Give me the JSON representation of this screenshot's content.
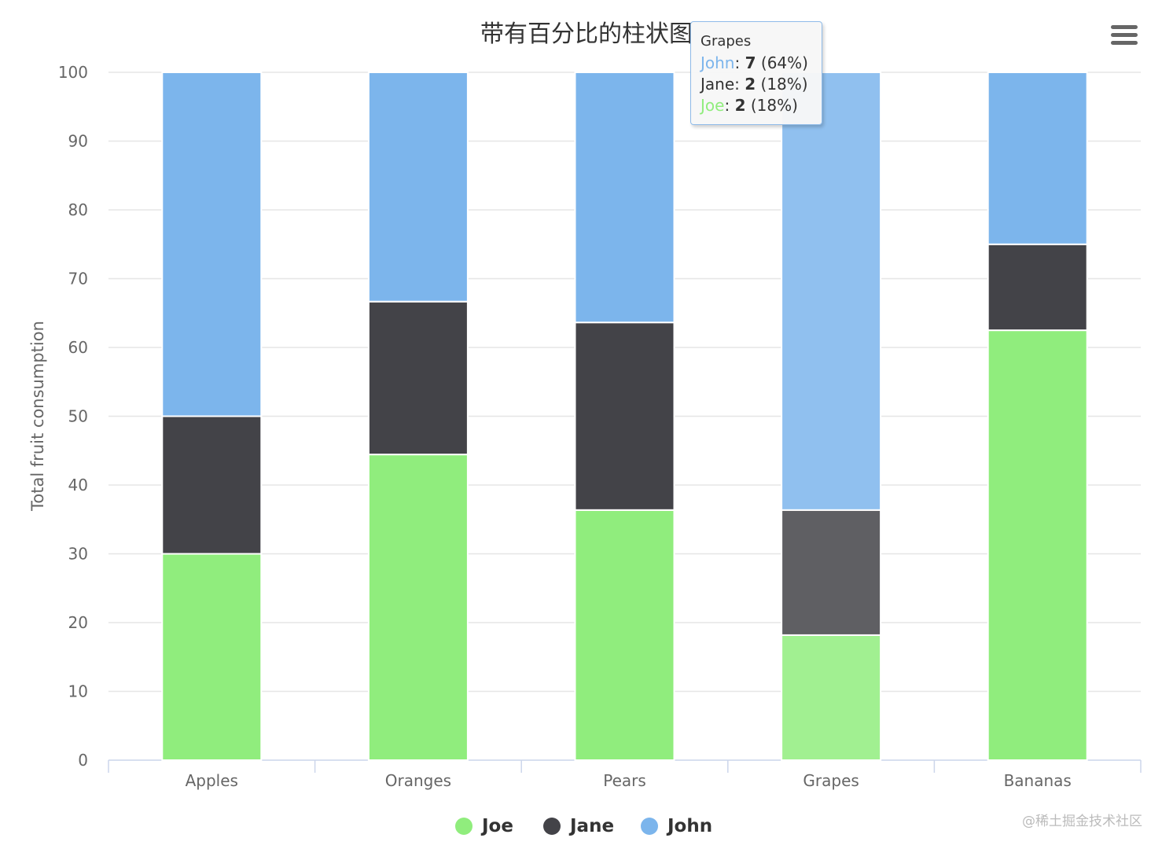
{
  "title": "带有百分比的柱状图",
  "watermark": "@稀土掘金技术社区",
  "menu_icon": "hamburger-menu-icon",
  "colors": {
    "Joe": "#90ed7d",
    "Jane": "#434348",
    "John": "#7cb5ec"
  },
  "tooltip": {
    "header": "Grapes",
    "rows": [
      {
        "name": "John",
        "value": "7",
        "pct": "(64%)",
        "color": "#7cb5ec"
      },
      {
        "name": "Jane",
        "value": "2",
        "pct": "(18%)",
        "color": "#434348"
      },
      {
        "name": "Joe",
        "value": "2",
        "pct": "(18%)",
        "color": "#90ed7d"
      }
    ]
  },
  "legend": [
    {
      "name": "Joe",
      "color": "#90ed7d"
    },
    {
      "name": "Jane",
      "color": "#434348"
    },
    {
      "name": "John",
      "color": "#7cb5ec"
    }
  ],
  "chart_data": {
    "type": "bar",
    "stacking": "percent",
    "title": "带有百分比的柱状图",
    "xlabel": "",
    "ylabel": "Total fruit consumption",
    "categories": [
      "Apples",
      "Oranges",
      "Pears",
      "Grapes",
      "Bananas"
    ],
    "ylim": [
      0,
      100
    ],
    "yticks": [
      0,
      10,
      20,
      30,
      40,
      50,
      60,
      70,
      80,
      90,
      100
    ],
    "grid": true,
    "legend_position": "bottom-center",
    "hovered_category": "Grapes",
    "series": [
      {
        "name": "John",
        "values": [
          5,
          3,
          4,
          7,
          2
        ],
        "color": "#7cb5ec"
      },
      {
        "name": "Jane",
        "values": [
          2,
          2,
          3,
          2,
          1
        ],
        "color": "#434348"
      },
      {
        "name": "Joe",
        "values": [
          3,
          4,
          4,
          2,
          5
        ],
        "color": "#90ed7d"
      }
    ]
  }
}
